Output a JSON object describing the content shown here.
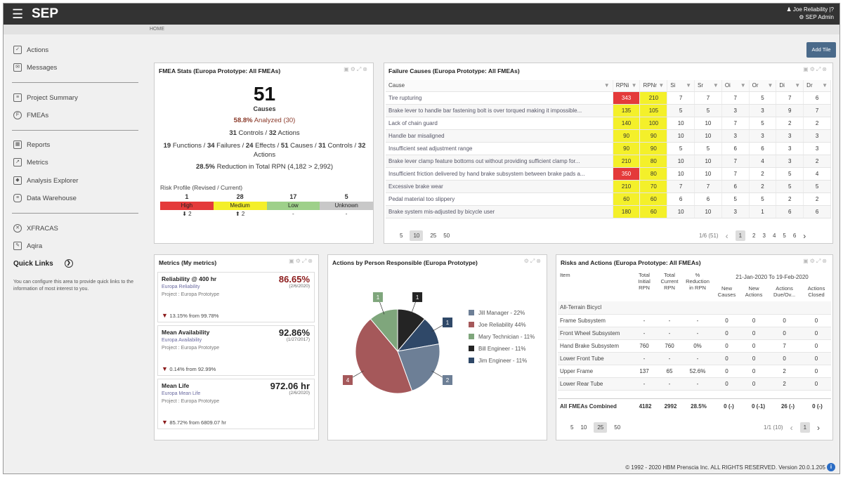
{
  "app": {
    "title": "SEP",
    "menu_icon": "hamburger-icon"
  },
  "user": {
    "name": "Joe Reliability",
    "separator": "|",
    "help": "?",
    "role": "SEP Admin"
  },
  "breadcrumb": "HOME",
  "add_tile": "Add Tile",
  "sidebar": {
    "items": [
      {
        "label": "Actions",
        "icon": "actions-icon"
      },
      {
        "label": "Messages",
        "icon": "messages-icon"
      },
      {
        "label": "Project Summary",
        "icon": "project-summary-icon"
      },
      {
        "label": "FMEAs",
        "icon": "fmea-icon"
      },
      {
        "label": "Reports",
        "icon": "reports-icon"
      },
      {
        "label": "Metrics",
        "icon": "metrics-icon"
      },
      {
        "label": "Analysis Explorer",
        "icon": "analysis-explorer-icon"
      },
      {
        "label": "Data Warehouse",
        "icon": "data-warehouse-icon"
      },
      {
        "label": "XFRACAS",
        "icon": "xfracas-icon"
      },
      {
        "label": "Aqira",
        "icon": "aqira-icon"
      }
    ],
    "quick_links": "Quick Links",
    "quick_links_text": "You can configure this area to provide quick links to the information of most interest to you."
  },
  "fmea_stats": {
    "title": "FMEA Stats (Europa Prototype: All FMEAs)",
    "count": "51",
    "count_label": "Causes",
    "analyzed_pct": "58.8%",
    "analyzed_text": "Analyzed (30)",
    "controls_line": {
      "a": "31",
      "b": "Controls /",
      "c": "32",
      "d": "Actions"
    },
    "summary_line": {
      "p1": "19",
      "t1": "Functions /",
      "p2": "34",
      "t2": "Failures /",
      "p3": "24",
      "t3": "Effects /",
      "p4": "51",
      "t4": "Causes /",
      "p5": "31",
      "t5": "Controls /",
      "p6": "32",
      "t6": "Actions"
    },
    "reduction_pct": "28.5%",
    "reduction_text": "Reduction in Total RPN (4,182 > 2,992)",
    "risk_title": "Risk Profile (Revised / Current)",
    "risk": [
      {
        "count": "1",
        "label": "High",
        "change": "⬇ 2",
        "color": "#e43a3a"
      },
      {
        "count": "28",
        "label": "Medium",
        "change": "⬆ 2",
        "color": "#f4ef2a"
      },
      {
        "count": "17",
        "label": "Low",
        "change": "-",
        "color": "#9ed08a"
      },
      {
        "count": "5",
        "label": "Unknown",
        "change": "-",
        "color": "#c8c8c8"
      }
    ]
  },
  "failure_causes": {
    "title": "Failure Causes (Europa Prototype: All FMEAs)",
    "headers": [
      "Cause",
      "RPNi",
      "RPNr",
      "Si",
      "Sr",
      "Oi",
      "Or",
      "Di",
      "Dr"
    ],
    "rows": [
      {
        "cause": "Tire rupturing",
        "rpni": "343",
        "rpnr": "210",
        "si": "7",
        "sr": "7",
        "oi": "7",
        "or": "5",
        "di": "7",
        "dr": "6",
        "ci": "red",
        "cr": "yel"
      },
      {
        "cause": "Brake lever to handle bar fastening bolt is over torqued making it impossible...",
        "rpni": "135",
        "rpnr": "105",
        "si": "5",
        "sr": "5",
        "oi": "3",
        "or": "3",
        "di": "9",
        "dr": "7",
        "ci": "yel",
        "cr": "yel"
      },
      {
        "cause": "Lack of chain guard",
        "rpni": "140",
        "rpnr": "100",
        "si": "10",
        "sr": "10",
        "oi": "7",
        "or": "5",
        "di": "2",
        "dr": "2",
        "ci": "yel",
        "cr": "yel"
      },
      {
        "cause": "Handle bar misaligned",
        "rpni": "90",
        "rpnr": "90",
        "si": "10",
        "sr": "10",
        "oi": "3",
        "or": "3",
        "di": "3",
        "dr": "3",
        "ci": "yel",
        "cr": "yel"
      },
      {
        "cause": "Insufficient seat adjustment range",
        "rpni": "90",
        "rpnr": "90",
        "si": "5",
        "sr": "5",
        "oi": "6",
        "or": "6",
        "di": "3",
        "dr": "3",
        "ci": "yel",
        "cr": "yel"
      },
      {
        "cause": "Brake lever clamp feature bottoms out without providing sufficient clamp for...",
        "rpni": "210",
        "rpnr": "80",
        "si": "10",
        "sr": "10",
        "oi": "7",
        "or": "4",
        "di": "3",
        "dr": "2",
        "ci": "yel",
        "cr": "yel"
      },
      {
        "cause": "Insufficient friction delivered by hand brake subsystem between brake pads a...",
        "rpni": "350",
        "rpnr": "80",
        "si": "10",
        "sr": "10",
        "oi": "7",
        "or": "2",
        "di": "5",
        "dr": "4",
        "ci": "red",
        "cr": "yel"
      },
      {
        "cause": "Excessive brake wear",
        "rpni": "210",
        "rpnr": "70",
        "si": "7",
        "sr": "7",
        "oi": "6",
        "or": "2",
        "di": "5",
        "dr": "5",
        "ci": "yel",
        "cr": "yel"
      },
      {
        "cause": "Pedal material too slippery",
        "rpni": "60",
        "rpnr": "60",
        "si": "6",
        "sr": "6",
        "oi": "5",
        "or": "5",
        "di": "2",
        "dr": "2",
        "ci": "yel",
        "cr": "yel"
      },
      {
        "cause": "Brake system mis-adjusted by bicycle user",
        "rpni": "180",
        "rpnr": "60",
        "si": "10",
        "sr": "10",
        "oi": "3",
        "or": "1",
        "di": "6",
        "dr": "6",
        "ci": "yel",
        "cr": "yel"
      }
    ],
    "page_sizes": [
      "5",
      "10",
      "25",
      "50"
    ],
    "page_info": "1/6 (51)",
    "pages": [
      "1",
      "2",
      "3",
      "4",
      "5",
      "6"
    ]
  },
  "metrics": {
    "title": "Metrics (My metrics)",
    "cards": [
      {
        "name": "Reliability @ 400 hr",
        "sub": "Europa Reliability",
        "project": "Project : Europa Prototype",
        "value": "86.65%",
        "date": "(2/6/2020)",
        "change": "13.15% from 99.78%",
        "value_color": "#8b1a1a"
      },
      {
        "name": "Mean Availability",
        "sub": "Europa Availability",
        "project": "Project : Europa Prototype",
        "value": "92.86%",
        "date": "(1/27/2017)",
        "change": "0.14% from 92.99%",
        "value_color": "#222"
      },
      {
        "name": "Mean Life",
        "sub": "Europa Mean Life",
        "project": "Project : Europa Prototype",
        "value": "972.06 hr",
        "date": "(2/6/2020)",
        "change": "85.72% from 6809.07 hr",
        "value_color": "#222"
      }
    ]
  },
  "actions_chart": {
    "title": "Actions by Person Responsible (Europa Prototype)"
  },
  "chart_data": {
    "type": "pie",
    "title": "Actions by Person Responsible (Europa Prototype)",
    "categories": [
      "Jill Manager",
      "Joe Reliability",
      "Mary Technician",
      "Bill Engineer",
      "Jim Engineer"
    ],
    "values": [
      2,
      4,
      1,
      1,
      1
    ],
    "legend": [
      "Jill Manager - 22%",
      "Joe Reliability 44%",
      "Mary Technician - 11%",
      "Bill Engineer - 11%",
      "Jim Engineer - 11%"
    ],
    "colors": [
      "#6d7f96",
      "#a5585a",
      "#7fa67c",
      "#242424",
      "#2f4868"
    ],
    "legend_position": "right"
  },
  "risks": {
    "title": "Risks and Actions (Europa Prototype: All FMEAs)",
    "headers": {
      "item": "Item",
      "total_initial": "Total Initial RPN",
      "total_current": "Total Current RPN",
      "reduction": "% Reduction in RPN",
      "date_range": "21-Jan-2020 To 19-Feb-2020",
      "new_causes": "New Causes",
      "new_actions": "New Actions",
      "due": "Actions Due/Ov...",
      "closed": "Actions Closed"
    },
    "rows": [
      {
        "item": "All-Terrain Bicycl",
        "ti": "",
        "tc": "",
        "red": "",
        "nc": "",
        "na": "",
        "due": "",
        "cl": ""
      },
      {
        "item": "Frame Subsystem",
        "ti": "-",
        "tc": "-",
        "red": "-",
        "nc": "0",
        "na": "0",
        "due": "0",
        "cl": "0"
      },
      {
        "item": "Front Wheel Subsystem",
        "ti": "-",
        "tc": "-",
        "red": "-",
        "nc": "0",
        "na": "0",
        "due": "0",
        "cl": "0"
      },
      {
        "item": "Hand Brake Subsystem",
        "ti": "760",
        "tc": "760",
        "red": "0%",
        "nc": "0",
        "na": "0",
        "due": "7",
        "cl": "0"
      },
      {
        "item": "Lower Front Tube",
        "ti": "-",
        "tc": "-",
        "red": "-",
        "nc": "0",
        "na": "0",
        "due": "0",
        "cl": "0"
      },
      {
        "item": "Upper Frame",
        "ti": "137",
        "tc": "65",
        "red": "52.6%",
        "nc": "0",
        "na": "0",
        "due": "2",
        "cl": "0"
      },
      {
        "item": "Lower Rear Tube",
        "ti": "-",
        "tc": "-",
        "red": "-",
        "nc": "0",
        "na": "0",
        "due": "2",
        "cl": "0"
      }
    ],
    "total": {
      "item": "All FMEAs Combined",
      "ti": "4182",
      "tc": "2992",
      "red": "28.5%",
      "nc": "0 (-)",
      "na": "0 (-1)",
      "due": "26 (-)",
      "cl": "0 (-)"
    },
    "page_sizes": [
      "5",
      "10",
      "25",
      "50"
    ],
    "page_info": "1/1 (10)",
    "pages": [
      "1"
    ]
  },
  "footer": {
    "text": "© 1992 - 2020 HBM Prenscia Inc. ALL RIGHTS RESERVED. Version 20.0.1.205",
    "info": "i"
  }
}
